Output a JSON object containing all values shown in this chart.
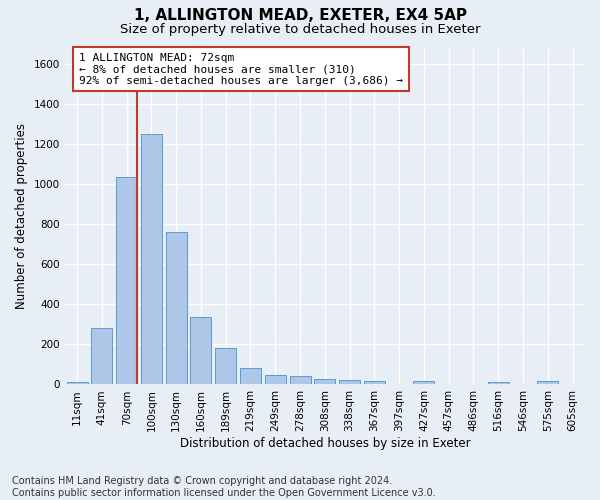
{
  "title1": "1, ALLINGTON MEAD, EXETER, EX4 5AP",
  "title2": "Size of property relative to detached houses in Exeter",
  "xlabel": "Distribution of detached houses by size in Exeter",
  "ylabel": "Number of detached properties",
  "footer1": "Contains HM Land Registry data © Crown copyright and database right 2024.",
  "footer2": "Contains public sector information licensed under the Open Government Licence v3.0.",
  "bar_labels": [
    "11sqm",
    "41sqm",
    "70sqm",
    "100sqm",
    "130sqm",
    "160sqm",
    "189sqm",
    "219sqm",
    "249sqm",
    "278sqm",
    "308sqm",
    "338sqm",
    "367sqm",
    "397sqm",
    "427sqm",
    "457sqm",
    "486sqm",
    "516sqm",
    "546sqm",
    "575sqm",
    "605sqm"
  ],
  "bar_values": [
    10,
    280,
    1035,
    1250,
    760,
    335,
    180,
    80,
    45,
    40,
    25,
    20,
    15,
    0,
    15,
    0,
    0,
    10,
    0,
    15,
    0
  ],
  "bar_color": "#aec6e8",
  "bar_edge_color": "#5b9bd5",
  "vline_color": "#c0392b",
  "annotation_line1": "1 ALLINGTON MEAD: 72sqm",
  "annotation_line2": "← 8% of detached houses are smaller (310)",
  "annotation_line3": "92% of semi-detached houses are larger (3,686) →",
  "annotation_box_color": "#ffffff",
  "annotation_border_color": "#c0392b",
  "ylim": [
    0,
    1680
  ],
  "yticks": [
    0,
    200,
    400,
    600,
    800,
    1000,
    1200,
    1400,
    1600
  ],
  "bg_color": "#e8eef5",
  "plot_bg_color": "#e8eef5",
  "grid_color": "#ffffff",
  "title1_fontsize": 11,
  "title2_fontsize": 9.5,
  "axis_fontsize": 8.5,
  "tick_fontsize": 7.5,
  "footer_fontsize": 7.0,
  "annot_fontsize": 8.0
}
